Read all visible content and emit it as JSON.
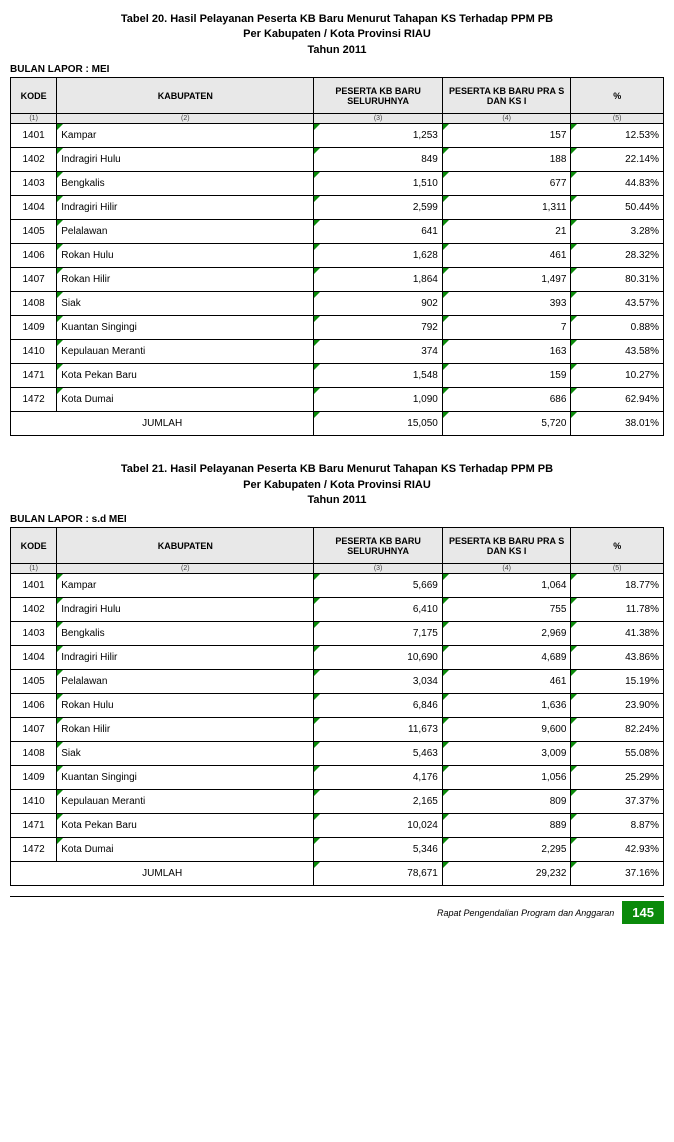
{
  "top": {
    "title_line1": "Tabel 20. Hasil Pelayanan Peserta KB Baru Menurut Tahapan KS Terhadap PPM PB",
    "title_line2": "Per Kabupaten / Kota Provinsi RIAU",
    "title_line3": "Tahun 2011",
    "bulan_label": "BULAN LAPOR :  MEI",
    "columns": {
      "kode": "KODE",
      "kab": "KABUPATEN",
      "v1": "PESERTA KB BARU SELURUHNYA",
      "v2": "PESERTA KB BARU PRA S DAN KS I",
      "pct": "%"
    },
    "numrow": [
      "(1)",
      "(2)",
      "(3)",
      "(4)",
      "(5)"
    ],
    "rows": [
      {
        "kode": "1401",
        "kab": "Kampar",
        "v1": "1,253",
        "v2": "157",
        "pct": "12.53%"
      },
      {
        "kode": "1402",
        "kab": "Indragiri Hulu",
        "v1": "849",
        "v2": "188",
        "pct": "22.14%"
      },
      {
        "kode": "1403",
        "kab": "Bengkalis",
        "v1": "1,510",
        "v2": "677",
        "pct": "44.83%"
      },
      {
        "kode": "1404",
        "kab": "Indragiri Hilir",
        "v1": "2,599",
        "v2": "1,311",
        "pct": "50.44%"
      },
      {
        "kode": "1405",
        "kab": "Pelalawan",
        "v1": "641",
        "v2": "21",
        "pct": "3.28%"
      },
      {
        "kode": "1406",
        "kab": "Rokan Hulu",
        "v1": "1,628",
        "v2": "461",
        "pct": "28.32%"
      },
      {
        "kode": "1407",
        "kab": "Rokan Hilir",
        "v1": "1,864",
        "v2": "1,497",
        "pct": "80.31%"
      },
      {
        "kode": "1408",
        "kab": "Siak",
        "v1": "902",
        "v2": "393",
        "pct": "43.57%"
      },
      {
        "kode": "1409",
        "kab": "Kuantan Singingi",
        "v1": "792",
        "v2": "7",
        "pct": "0.88%"
      },
      {
        "kode": "1410",
        "kab": "Kepulauan Meranti",
        "v1": "374",
        "v2": "163",
        "pct": "43.58%"
      },
      {
        "kode": "1471",
        "kab": "Kota Pekan Baru",
        "v1": "1,548",
        "v2": "159",
        "pct": "10.27%"
      },
      {
        "kode": "1472",
        "kab": "Kota Dumai",
        "v1": "1,090",
        "v2": "686",
        "pct": "62.94%"
      }
    ],
    "jumlah": {
      "label": "JUMLAH",
      "v1": "15,050",
      "v2": "5,720",
      "pct": "38.01%"
    }
  },
  "bottom": {
    "title_line1": "Tabel 21. Hasil Pelayanan Peserta KB Baru Menurut Tahapan KS Terhadap PPM PB",
    "title_line2": "Per Kabupaten / Kota Provinsi RIAU",
    "title_line3": "Tahun 2011",
    "bulan_label": "BULAN LAPOR :  s.d MEI",
    "columns": {
      "kode": "KODE",
      "kab": "KABUPATEN",
      "v1": "PESERTA KB BARU SELURUHNYA",
      "v2": "PESERTA KB BARU PRA S DAN KS I",
      "pct": "%"
    },
    "numrow": [
      "(1)",
      "(2)",
      "(3)",
      "(4)",
      "(5)"
    ],
    "rows": [
      {
        "kode": "1401",
        "kab": "Kampar",
        "v1": "5,669",
        "v2": "1,064",
        "pct": "18.77%"
      },
      {
        "kode": "1402",
        "kab": "Indragiri Hulu",
        "v1": "6,410",
        "v2": "755",
        "pct": "11.78%"
      },
      {
        "kode": "1403",
        "kab": "Bengkalis",
        "v1": "7,175",
        "v2": "2,969",
        "pct": "41.38%"
      },
      {
        "kode": "1404",
        "kab": "Indragiri Hilir",
        "v1": "10,690",
        "v2": "4,689",
        "pct": "43.86%"
      },
      {
        "kode": "1405",
        "kab": "Pelalawan",
        "v1": "3,034",
        "v2": "461",
        "pct": "15.19%"
      },
      {
        "kode": "1406",
        "kab": "Rokan Hulu",
        "v1": "6,846",
        "v2": "1,636",
        "pct": "23.90%"
      },
      {
        "kode": "1407",
        "kab": "Rokan Hilir",
        "v1": "11,673",
        "v2": "9,600",
        "pct": "82.24%"
      },
      {
        "kode": "1408",
        "kab": "Siak",
        "v1": "5,463",
        "v2": "3,009",
        "pct": "55.08%"
      },
      {
        "kode": "1409",
        "kab": "Kuantan Singingi",
        "v1": "4,176",
        "v2": "1,056",
        "pct": "25.29%"
      },
      {
        "kode": "1410",
        "kab": "Kepulauan Meranti",
        "v1": "2,165",
        "v2": "809",
        "pct": "37.37%"
      },
      {
        "kode": "1471",
        "kab": "Kota Pekan Baru",
        "v1": "10,024",
        "v2": "889",
        "pct": "8.87%"
      },
      {
        "kode": "1472",
        "kab": "Kota Dumai",
        "v1": "5,346",
        "v2": "2,295",
        "pct": "42.93%"
      }
    ],
    "jumlah": {
      "label": "JUMLAH",
      "v1": "78,671",
      "v2": "29,232",
      "pct": "37.16%"
    }
  },
  "footer": {
    "text": "Rapat Pengendalian Program dan Anggaran",
    "page": "145"
  }
}
